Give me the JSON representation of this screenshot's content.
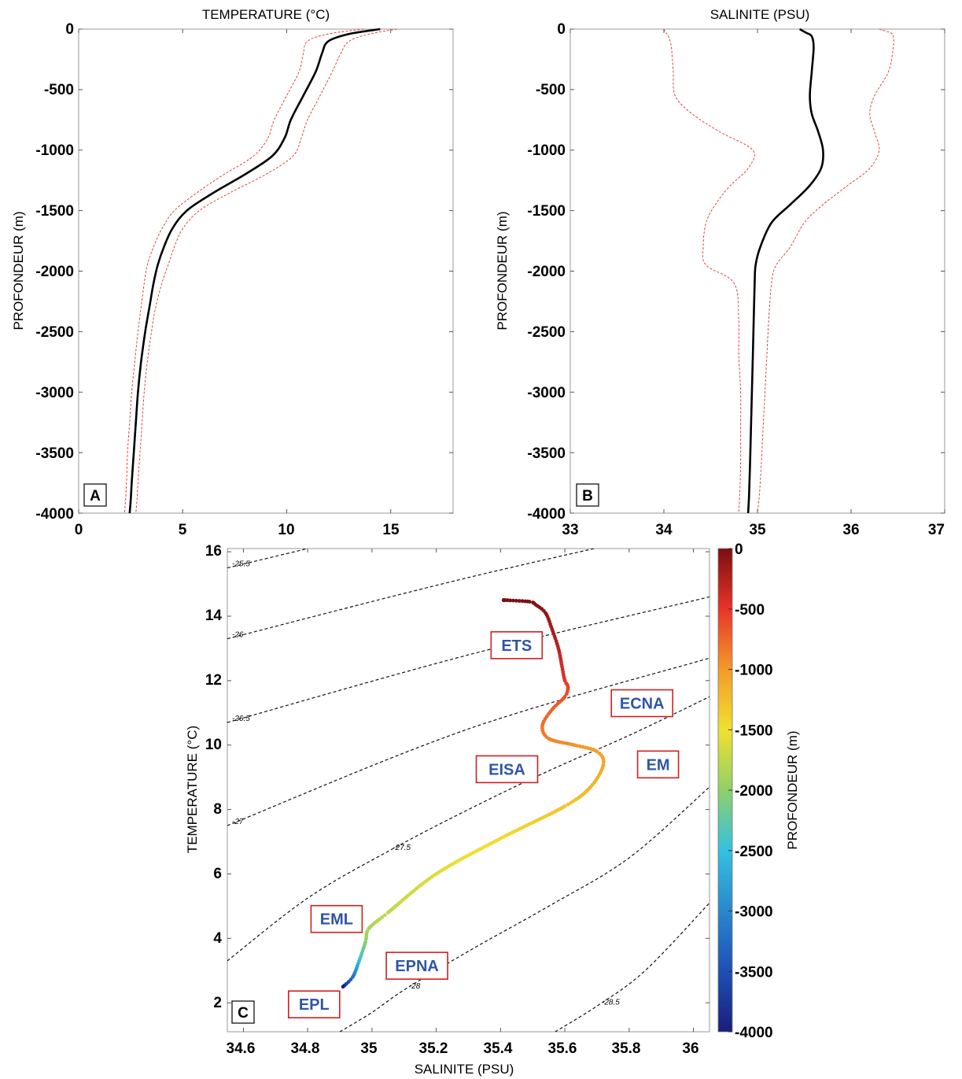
{
  "chart_data": [
    {
      "panel": "A",
      "type": "line",
      "title": "TEMPERATURE (°C)",
      "xlabel": "",
      "ylabel": "PROFONDEUR (m)",
      "xlim": [
        0,
        18
      ],
      "ylim": [
        -4000,
        0
      ],
      "xticks": [
        0,
        5,
        10,
        15
      ],
      "yticks": [
        0,
        -500,
        -1000,
        -1500,
        -2000,
        -2500,
        -3000,
        -3500,
        -4000
      ],
      "series": [
        {
          "role": "mean",
          "color": "#000000",
          "style": "solid",
          "x": [
            14.5,
            13.0,
            12.0,
            11.7,
            11.4,
            10.8,
            10.2,
            9.9,
            9.3,
            8.0,
            6.5,
            5.2,
            4.5,
            4.1,
            3.8,
            3.6,
            3.4,
            3.2,
            3.0,
            2.85,
            2.75,
            2.65,
            2.55,
            2.5,
            2.45
          ],
          "y": [
            0,
            -40,
            -100,
            -200,
            -350,
            -550,
            -750,
            -900,
            -1050,
            -1200,
            -1350,
            -1500,
            -1650,
            -1800,
            -1950,
            -2100,
            -2300,
            -2500,
            -2750,
            -3000,
            -3250,
            -3500,
            -3750,
            -3900,
            -4000
          ]
        },
        {
          "role": "mean+std",
          "color": "#e03030",
          "style": "dashed",
          "x": [
            15.3,
            14.0,
            13.0,
            12.6,
            12.2,
            11.6,
            11.0,
            10.7,
            10.3,
            9.0,
            7.3,
            5.8,
            5.0,
            4.6,
            4.3,
            4.0,
            3.7,
            3.5,
            3.3,
            3.15,
            3.05,
            2.95,
            2.85,
            2.8,
            2.75
          ],
          "y": [
            0,
            -40,
            -100,
            -200,
            -350,
            -550,
            -750,
            -900,
            -1050,
            -1200,
            -1350,
            -1500,
            -1650,
            -1800,
            -1950,
            -2100,
            -2300,
            -2500,
            -2750,
            -3000,
            -3250,
            -3500,
            -3750,
            -3900,
            -4000
          ]
        },
        {
          "role": "mean-std",
          "color": "#e03030",
          "style": "dashed",
          "x": [
            13.7,
            12.0,
            11.0,
            10.8,
            10.6,
            10.0,
            9.4,
            9.1,
            8.4,
            7.0,
            5.7,
            4.6,
            4.0,
            3.6,
            3.3,
            3.15,
            3.0,
            2.85,
            2.7,
            2.55,
            2.45,
            2.35,
            2.3,
            2.25,
            2.2
          ],
          "y": [
            0,
            -40,
            -100,
            -200,
            -350,
            -550,
            -750,
            -900,
            -1050,
            -1200,
            -1350,
            -1500,
            -1650,
            -1800,
            -1950,
            -2100,
            -2300,
            -2500,
            -2750,
            -3000,
            -3250,
            -3500,
            -3750,
            -3900,
            -4000
          ]
        }
      ]
    },
    {
      "panel": "B",
      "type": "line",
      "title": "SALINITE (PSU)",
      "xlabel": "",
      "ylabel": "PROFONDEUR (m)",
      "xlim": [
        33,
        37
      ],
      "ylim": [
        -4000,
        0
      ],
      "xticks": [
        33,
        34,
        35,
        36,
        37
      ],
      "yticks": [
        0,
        -500,
        -1000,
        -1500,
        -2000,
        -2500,
        -3000,
        -3500,
        -4000
      ],
      "series": [
        {
          "role": "mean",
          "color": "#000000",
          "style": "solid",
          "x": [
            35.45,
            35.52,
            35.58,
            35.6,
            35.58,
            35.56,
            35.58,
            35.65,
            35.7,
            35.68,
            35.55,
            35.35,
            35.15,
            35.03,
            34.98,
            34.97,
            34.96,
            34.95,
            34.94,
            34.93,
            34.92,
            34.91,
            34.9
          ],
          "y": [
            0,
            -30,
            -60,
            -150,
            -350,
            -550,
            -700,
            -850,
            -1000,
            -1150,
            -1300,
            -1450,
            -1600,
            -1800,
            -1950,
            -2100,
            -2400,
            -2700,
            -3000,
            -3300,
            -3600,
            -3850,
            -4000
          ]
        },
        {
          "role": "mean+std",
          "color": "#e03030",
          "style": "dashed",
          "x": [
            36.3,
            36.42,
            36.45,
            36.45,
            36.4,
            36.25,
            36.2,
            36.25,
            36.3,
            36.2,
            35.95,
            35.7,
            35.5,
            35.35,
            35.2,
            35.15,
            35.12,
            35.1,
            35.08,
            35.06,
            35.04,
            35.02,
            35.0
          ],
          "y": [
            0,
            -30,
            -60,
            -150,
            -350,
            -550,
            -700,
            -850,
            -1000,
            -1150,
            -1300,
            -1450,
            -1600,
            -1800,
            -1950,
            -2100,
            -2400,
            -2700,
            -3000,
            -3300,
            -3600,
            -3850,
            -4000
          ]
        },
        {
          "role": "mean-std",
          "color": "#e03030",
          "style": "dashed",
          "x": [
            34.0,
            34.02,
            34.05,
            34.08,
            34.1,
            34.12,
            34.3,
            34.6,
            34.95,
            34.9,
            34.7,
            34.55,
            34.45,
            34.42,
            34.45,
            34.75,
            34.8,
            34.8,
            34.82,
            34.82,
            34.82,
            34.81,
            34.8
          ],
          "y": [
            0,
            -30,
            -60,
            -150,
            -350,
            -550,
            -700,
            -850,
            -1000,
            -1150,
            -1300,
            -1450,
            -1600,
            -1800,
            -1950,
            -2100,
            -2400,
            -2700,
            -3000,
            -3300,
            -3600,
            -3850,
            -4000
          ]
        }
      ]
    },
    {
      "panel": "C",
      "type": "scatter",
      "title": "",
      "xlabel": "SALINITE (PSU)",
      "ylabel": "TEMPERATURE (°C)",
      "xlim": [
        34.55,
        36.05
      ],
      "ylim": [
        1.1,
        16.1
      ],
      "xticks": [
        34.6,
        34.8,
        35,
        35.2,
        35.4,
        35.6,
        35.8,
        36
      ],
      "xtick_labels": [
        "34.6",
        "34.8",
        "35",
        "35.2",
        "35.4",
        "35.6",
        "35.8",
        "36"
      ],
      "yticks": [
        2,
        4,
        6,
        8,
        10,
        12,
        14,
        16
      ],
      "colorbar": {
        "label": "PROFONDEUR (m)",
        "min": -4000,
        "max": 0,
        "ticks": [
          0,
          -500,
          -1000,
          -1500,
          -2000,
          -2500,
          -3000,
          -3500,
          -4000
        ],
        "colormap": "jet"
      },
      "profile": {
        "s": [
          35.41,
          35.49,
          35.51,
          35.54,
          35.56,
          35.58,
          35.59,
          35.6,
          35.61,
          35.6,
          35.56,
          35.53,
          35.55,
          35.63,
          35.7,
          35.72,
          35.68,
          35.6,
          35.4,
          35.2,
          35.05,
          34.99,
          34.98,
          34.96,
          34.94,
          34.91
        ],
        "t": [
          14.5,
          14.45,
          14.35,
          14.1,
          13.6,
          13.0,
          12.5,
          12.0,
          11.8,
          11.5,
          11.1,
          10.6,
          10.2,
          10.0,
          9.8,
          9.4,
          8.7,
          8.1,
          7.1,
          6.0,
          4.8,
          4.3,
          3.9,
          3.3,
          2.8,
          2.5
        ],
        "depth": [
          0,
          -20,
          -50,
          -100,
          -180,
          -280,
          -380,
          -480,
          -560,
          -640,
          -720,
          -800,
          -880,
          -960,
          -1040,
          -1100,
          -1200,
          -1300,
          -1450,
          -1600,
          -1750,
          -1850,
          -2000,
          -2500,
          -3200,
          -4000
        ]
      },
      "water_masses": [
        {
          "label": "ETS",
          "s": 35.45,
          "t": 13.1
        },
        {
          "label": "ECNA",
          "s": 35.84,
          "t": 11.3
        },
        {
          "label": "EISA",
          "s": 35.42,
          "t": 9.25
        },
        {
          "label": "EM",
          "s": 35.89,
          "t": 9.4
        },
        {
          "label": "EML",
          "s": 34.89,
          "t": 4.6
        },
        {
          "label": "EPNA",
          "s": 35.14,
          "t": 3.15
        },
        {
          "label": "EPL",
          "s": 34.82,
          "t": 1.95
        }
      ],
      "isopycnals": [
        {
          "sigma": 25.5,
          "label": "25.5",
          "s": [
            34.55,
            34.8
          ],
          "t": [
            15.5,
            16.1
          ]
        },
        {
          "sigma": 26.0,
          "label": "26",
          "s": [
            34.55,
            35.3,
            36.05
          ],
          "t": [
            13.3,
            15.2,
            16.9
          ]
        },
        {
          "sigma": 26.5,
          "label": "26.5",
          "s": [
            34.55,
            35.3,
            36.05
          ],
          "t": [
            10.7,
            12.8,
            14.6
          ]
        },
        {
          "sigma": 27.0,
          "label": "27",
          "s": [
            34.55,
            35.3,
            36.05
          ],
          "t": [
            7.5,
            10.5,
            12.7
          ]
        },
        {
          "sigma": 27.5,
          "label": "27.5",
          "s": [
            34.55,
            34.8,
            35.05,
            35.3,
            35.55,
            35.8,
            36.05
          ],
          "t": [
            3.3,
            5.25,
            6.7,
            8.0,
            9.2,
            10.3,
            11.5
          ]
        },
        {
          "sigma": 28.0,
          "label": "28",
          "s": [
            34.9,
            35.0,
            35.1,
            35.3,
            35.55,
            35.8,
            36.05
          ],
          "t": [
            1.1,
            1.7,
            2.4,
            3.6,
            5.0,
            6.5,
            8.7
          ]
        },
        {
          "sigma": 28.5,
          "label": "28.5",
          "s": [
            35.57,
            35.7,
            35.85,
            36.05
          ],
          "t": [
            1.1,
            1.9,
            3.0,
            5.1
          ]
        }
      ]
    }
  ],
  "tick_label_text": {
    "a_x": [
      "0",
      "5",
      "10",
      "15"
    ],
    "b_x": [
      "33",
      "34",
      "35",
      "36",
      "37"
    ],
    "depth_y": [
      "0",
      "-500",
      "-1000",
      "-1500",
      "-2000",
      "-2500",
      "-3000",
      "-3500",
      "-4000"
    ],
    "c_y": [
      "2",
      "4",
      "6",
      "8",
      "10",
      "12",
      "14",
      "16"
    ]
  },
  "panel_letters": [
    "A",
    "B",
    "C"
  ]
}
